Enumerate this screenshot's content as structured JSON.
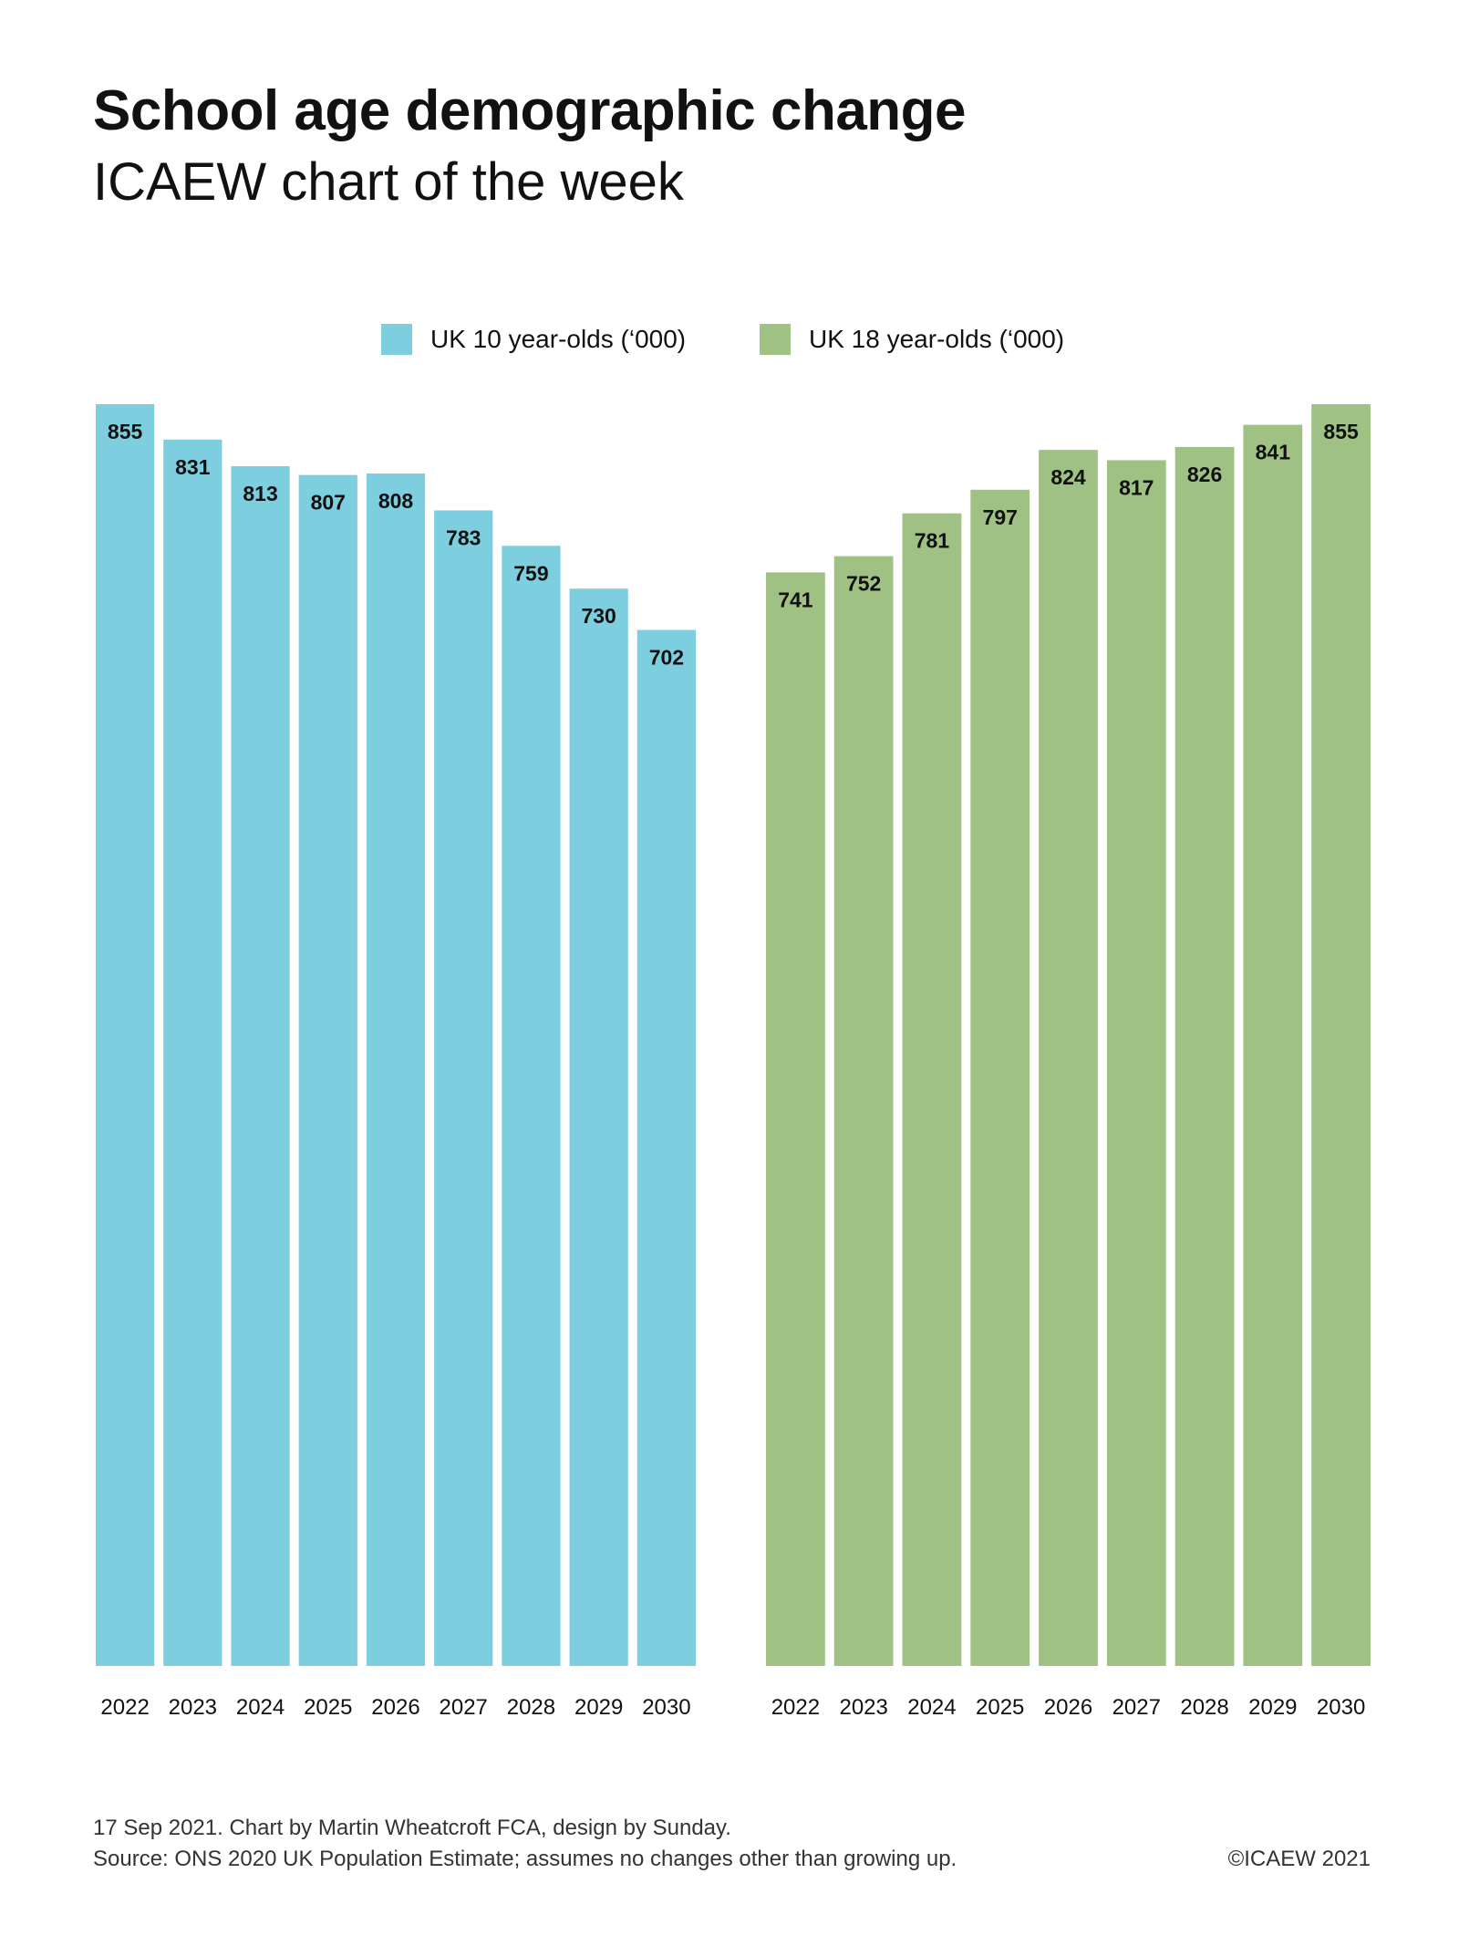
{
  "header": {
    "title": "School age demographic change",
    "subtitle": "ICAEW chart of the week"
  },
  "footer": {
    "credits": "17 Sep 2021.   Chart by Martin Wheatcroft FCA, design by Sunday.",
    "source": "Source: ONS 2020 UK Population Estimate; assumes no changes other than growing up.",
    "copyright": "©ICAEW 2021"
  },
  "chart_data": {
    "type": "bar",
    "title": "School age demographic change",
    "subtitle": "ICAEW chart of the week",
    "xlabel": "",
    "ylabel": "",
    "ylim": [
      0,
      855
    ],
    "grid": false,
    "legend_position": "top-center",
    "categories": [
      "2022",
      "2023",
      "2024",
      "2025",
      "2026",
      "2027",
      "2028",
      "2029",
      "2030"
    ],
    "series": [
      {
        "name": "UK 10 year-olds (‘000)",
        "color": "#7dcfe0",
        "values": [
          855,
          831,
          813,
          807,
          808,
          783,
          759,
          730,
          702
        ]
      },
      {
        "name": "UK 18 year-olds (‘000)",
        "color": "#a0c184",
        "values": [
          741,
          752,
          781,
          797,
          824,
          817,
          826,
          841,
          855
        ]
      }
    ]
  }
}
